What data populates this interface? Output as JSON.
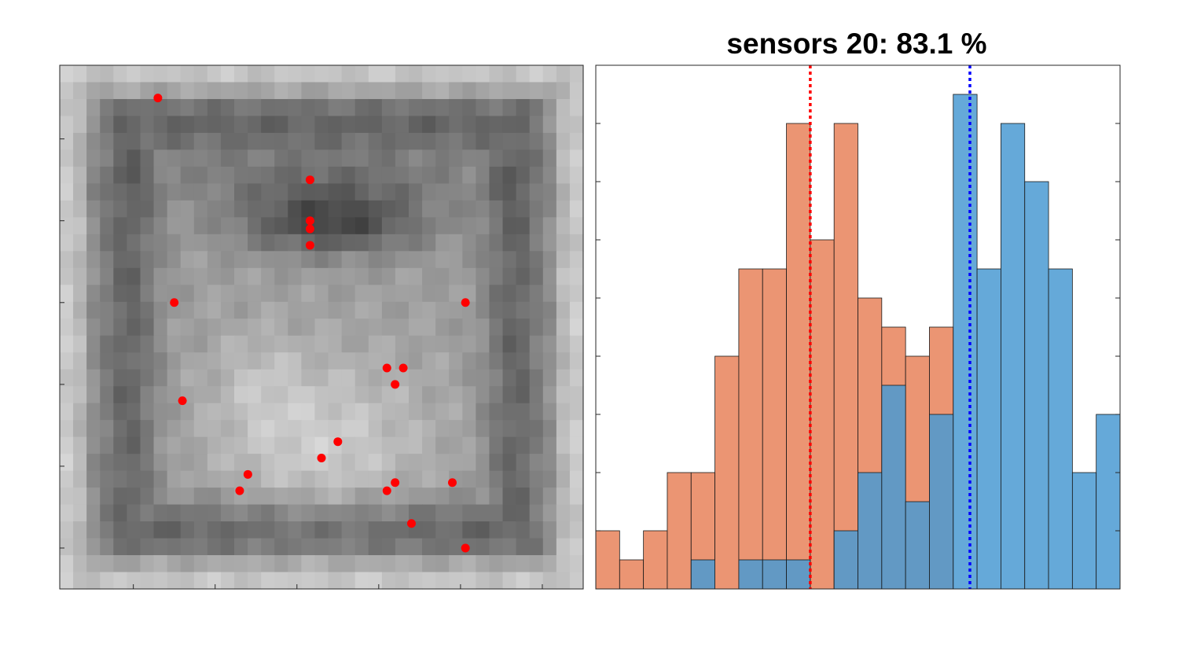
{
  "chart_data": [
    {
      "type": "heatmap",
      "panel": "left",
      "description_scale": "grayscale",
      "grid_size": [
        39,
        31
      ],
      "gray_min": 0.0,
      "gray_max": 1.0,
      "sensors": {
        "color": "#ff0000",
        "points": [
          [
            6,
            2
          ],
          [
            15.3,
            7
          ],
          [
            15.3,
            9.5
          ],
          [
            15.3,
            10
          ],
          [
            15.3,
            11
          ],
          [
            7,
            14.5
          ],
          [
            24.8,
            14.5
          ],
          [
            20,
            18.5
          ],
          [
            21,
            18.5
          ],
          [
            20.5,
            19.5
          ],
          [
            7.5,
            20.5
          ],
          [
            17,
            23
          ],
          [
            16,
            24
          ],
          [
            11.5,
            25
          ],
          [
            20.5,
            25.5
          ],
          [
            24,
            25.5
          ],
          [
            11,
            26
          ],
          [
            20,
            26
          ],
          [
            21.5,
            28
          ],
          [
            24.8,
            29.5
          ]
        ]
      },
      "xlim": [
        0.5,
        32.5
      ],
      "ylim": [
        0.5,
        32.5
      ],
      "xticks": [
        5,
        10,
        15,
        20,
        25,
        30
      ],
      "yticks": [
        5,
        10,
        15,
        20,
        25,
        30
      ],
      "tick_labels": false
    },
    {
      "type": "bar",
      "panel": "right",
      "title": "sensors 20: 83.1 %",
      "bin_edges": [
        -1.0,
        -0.9,
        -0.8,
        -0.7,
        -0.6,
        -0.5,
        -0.4,
        -0.3,
        -0.2,
        -0.1,
        0.0,
        0.1,
        0.2,
        0.3,
        0.4,
        0.5,
        0.6,
        0.7,
        0.8,
        0.9,
        1.0,
        1.1,
        1.2
      ],
      "series": [
        {
          "color": "#e8825a",
          "values": [
            2,
            1,
            2,
            4,
            4,
            8,
            11,
            11,
            16,
            12,
            16,
            10,
            9,
            8,
            9,
            0,
            0,
            0,
            0,
            0,
            0,
            0
          ],
          "mean": -0.1
        },
        {
          "color": "#4a9ad2",
          "values": [
            0,
            0,
            0,
            0,
            1,
            0,
            1,
            1,
            1,
            0,
            2,
            4,
            7,
            3,
            6,
            17,
            11,
            16,
            14,
            11,
            4,
            6
          ],
          "mean": 0.57
        }
      ],
      "mean_line_colors": [
        "#ff0000",
        "#0000ff"
      ],
      "xlim": [
        -1.0,
        1.2
      ],
      "ylim": [
        0,
        18
      ],
      "yticks": [
        2,
        4,
        6,
        8,
        10,
        12,
        14,
        16
      ],
      "tick_labels": false
    }
  ]
}
